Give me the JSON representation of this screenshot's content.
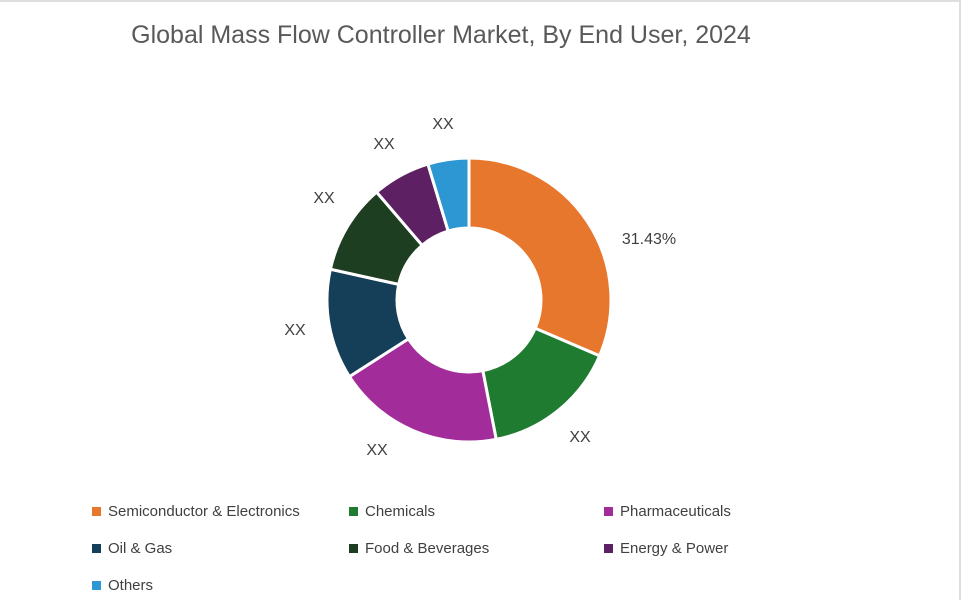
{
  "title": "Global Mass Flow Controller Market, By End User, 2024",
  "colors": {
    "background": "#FFFFFF",
    "border": "#DEDEDE",
    "title_text": "#595959",
    "label_text": "#404040",
    "slice_gap": "#FFFFFF"
  },
  "chart_data": {
    "type": "pie",
    "subtype": "donut",
    "title": "Global Mass Flow Controller Market, By End User, 2024",
    "unit": "%",
    "inner_radius_ratio": 0.51,
    "legend_position": "bottom-left",
    "start_angle_deg": 0,
    "direction": "clockwise",
    "slices": [
      {
        "name": "Semiconductor & Electronics",
        "value": 31.43,
        "data_label": "31.43%",
        "color": "#E8772E"
      },
      {
        "name": "Chemicals",
        "value": 15.5,
        "data_label": "XX",
        "color": "#1F7B30"
      },
      {
        "name": "Pharmaceuticals",
        "value": 19.0,
        "data_label": "XX",
        "color": "#A32C9B"
      },
      {
        "name": "Oil & Gas",
        "value": 12.55,
        "data_label": "XX",
        "color": "#153F58"
      },
      {
        "name": "Food & Beverages",
        "value": 10.25,
        "data_label": "XX",
        "color": "#1E3E21"
      },
      {
        "name": "Energy & Power",
        "value": 6.6,
        "data_label": "XX",
        "color": "#5C2063"
      },
      {
        "name": "Others",
        "value": 4.67,
        "data_label": "XX",
        "color": "#2D97D3"
      }
    ]
  }
}
